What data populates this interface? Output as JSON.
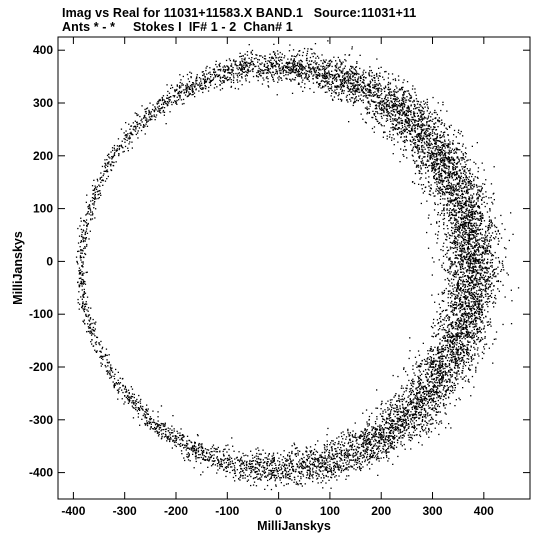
{
  "header": {
    "title_line1": "Imag vs Real for 11031+11583.X BAND.1   Source:11031+11",
    "title_line2": "Ants * - *     Stokes I  IF# 1 - 2  Chan# 1"
  },
  "chart_data": {
    "type": "scatter",
    "xlabel": "MilliJanskys",
    "ylabel": "MilliJanskys",
    "xlim": [
      -430,
      490
    ],
    "ylim": [
      -450,
      425
    ],
    "xticks": [
      -400,
      -300,
      -200,
      -100,
      0,
      100,
      200,
      300,
      400
    ],
    "yticks": [
      -400,
      -300,
      -200,
      -100,
      0,
      100,
      200,
      300,
      400
    ],
    "grid": false,
    "point_color": "#000000",
    "ring": {
      "center_x": 0,
      "center_y": -10,
      "radius": 385,
      "denser_side": "right",
      "n_points": 9000
    }
  }
}
